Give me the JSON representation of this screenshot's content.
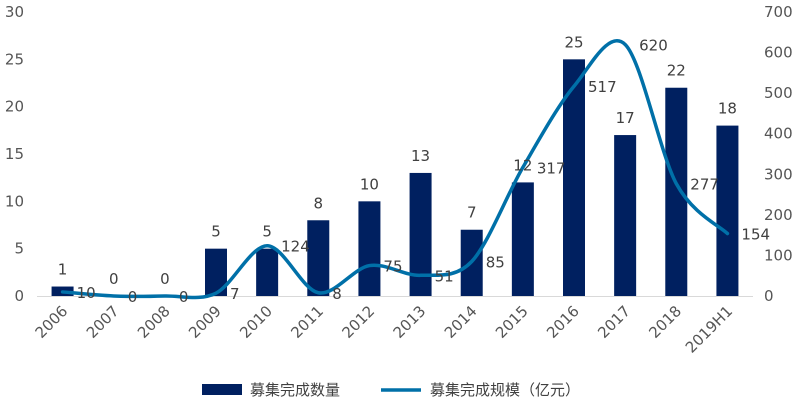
{
  "chart_data": {
    "type": "bar",
    "title": "",
    "categories": [
      "2006",
      "2007",
      "2008",
      "2009",
      "2010",
      "2011",
      "2012",
      "2013",
      "2014",
      "2015",
      "2016",
      "2017",
      "2018",
      "2019H1"
    ],
    "series": [
      {
        "name": "募集完成数量",
        "type": "bar",
        "axis": "left",
        "values": [
          1,
          0,
          0,
          5,
          5,
          8,
          10,
          13,
          7,
          12,
          25,
          17,
          22,
          18
        ],
        "data_labels": [
          "1",
          "0",
          "0",
          "5",
          "5",
          "8",
          "10",
          "13",
          "7",
          "12",
          "25",
          "17",
          "22",
          "18"
        ]
      },
      {
        "name": "募集完成规模（亿元）",
        "type": "line",
        "axis": "right",
        "values": [
          10,
          0,
          0,
          7,
          124,
          8,
          75,
          51,
          85,
          317,
          517,
          620,
          277,
          154
        ],
        "data_labels": [
          "10",
          "0",
          "0",
          "7",
          "124",
          "8",
          "75",
          "51",
          "85",
          "317",
          "517",
          "620",
          "277",
          "154"
        ]
      }
    ],
    "y_left": {
      "ylim": [
        0,
        30
      ],
      "ticks": [
        "0",
        "5",
        "10",
        "15",
        "20",
        "25",
        "30"
      ]
    },
    "y_right": {
      "ylim": [
        0,
        700
      ],
      "ticks": [
        "0",
        "100",
        "200",
        "300",
        "400",
        "500",
        "600",
        "700"
      ]
    },
    "grid": false,
    "legend": "bottom",
    "colors": {
      "bar": "#002060",
      "line": "#0070A8",
      "axis": "#d9d9d9"
    }
  }
}
